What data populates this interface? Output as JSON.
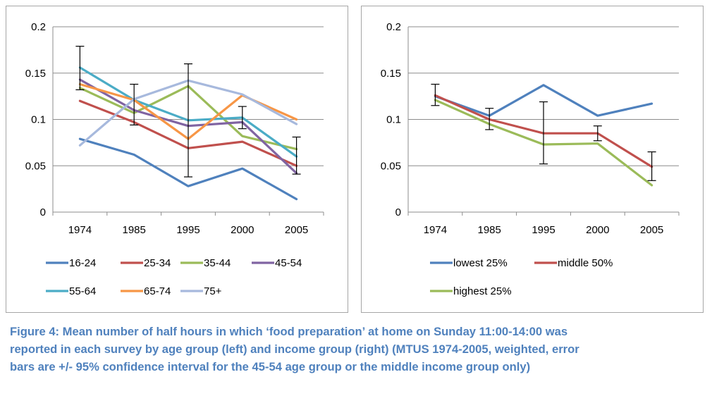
{
  "charts": {
    "left": {
      "chart_data": {
        "type": "line",
        "title": "",
        "xlabel": "",
        "ylabel": "",
        "categories": [
          "1974",
          "1985",
          "1995",
          "2000",
          "2005"
        ],
        "ylim": [
          0,
          0.2
        ],
        "yticks": [
          "0",
          "0.05",
          "0.1",
          "0.15",
          "0.2"
        ],
        "grid": true,
        "legend_position": "bottom",
        "series": [
          {
            "name": "16-24",
            "color": "#4f81bd",
            "values": [
              0.079,
              0.062,
              0.028,
              0.047,
              0.014
            ]
          },
          {
            "name": "25-34",
            "color": "#c0504d",
            "values": [
              0.12,
              0.097,
              0.069,
              0.076,
              0.05
            ]
          },
          {
            "name": "35-44",
            "color": "#9bbb59",
            "values": [
              0.134,
              0.107,
              0.136,
              0.082,
              0.068
            ]
          },
          {
            "name": "45-54",
            "color": "#8064a2",
            "values": [
              0.143,
              0.11,
              0.093,
              0.097,
              0.042
            ]
          },
          {
            "name": "55-64",
            "color": "#4bacc6",
            "values": [
              0.156,
              0.121,
              0.099,
              0.102,
              0.06
            ]
          },
          {
            "name": "65-74",
            "color": "#f79646",
            "values": [
              0.138,
              0.121,
              0.079,
              0.126,
              0.1
            ]
          },
          {
            "name": "75+",
            "color": "#a7b9dd",
            "values": [
              0.072,
              0.122,
              0.142,
              0.127,
              0.095
            ]
          }
        ],
        "error_bars": {
          "series": "45-54",
          "lower": [
            0.132,
            0.094,
            0.038,
            0.09,
            0.041
          ],
          "upper": [
            0.179,
            0.138,
            0.16,
            0.114,
            0.081
          ]
        }
      }
    },
    "right": {
      "chart_data": {
        "type": "line",
        "title": "",
        "xlabel": "",
        "ylabel": "",
        "categories": [
          "1974",
          "1985",
          "1995",
          "2000",
          "2005"
        ],
        "ylim": [
          0,
          0.2
        ],
        "yticks": [
          "0",
          "0.05",
          "0.1",
          "0.15",
          "0.2"
        ],
        "grid": true,
        "legend_position": "bottom",
        "series": [
          {
            "name": "lowest 25%",
            "color": "#4f81bd",
            "values": [
              0.125,
              0.104,
              0.137,
              0.104,
              0.117
            ]
          },
          {
            "name": "middle 50%",
            "color": "#c0504d",
            "values": [
              0.126,
              0.1,
              0.085,
              0.085,
              0.049
            ]
          },
          {
            "name": "highest 25%",
            "color": "#9bbb59",
            "values": [
              0.121,
              0.095,
              0.073,
              0.074,
              0.029
            ]
          }
        ],
        "error_bars": {
          "series": "middle 50%",
          "lower": [
            0.115,
            0.089,
            0.052,
            0.077,
            0.034
          ],
          "upper": [
            0.138,
            0.112,
            0.119,
            0.093,
            0.065
          ]
        }
      }
    }
  },
  "caption": {
    "line1": "Figure 4: Mean number of half hours in which ‘food preparation’ at home on Sunday 11:00-14:00 was",
    "line2": "reported in each survey by age group (left) and income group (right) (MTUS 1974-2005, weighted, error",
    "line3": "bars are +/- 95% confidence interval for the 45-54 age group or the middle income group only)"
  }
}
